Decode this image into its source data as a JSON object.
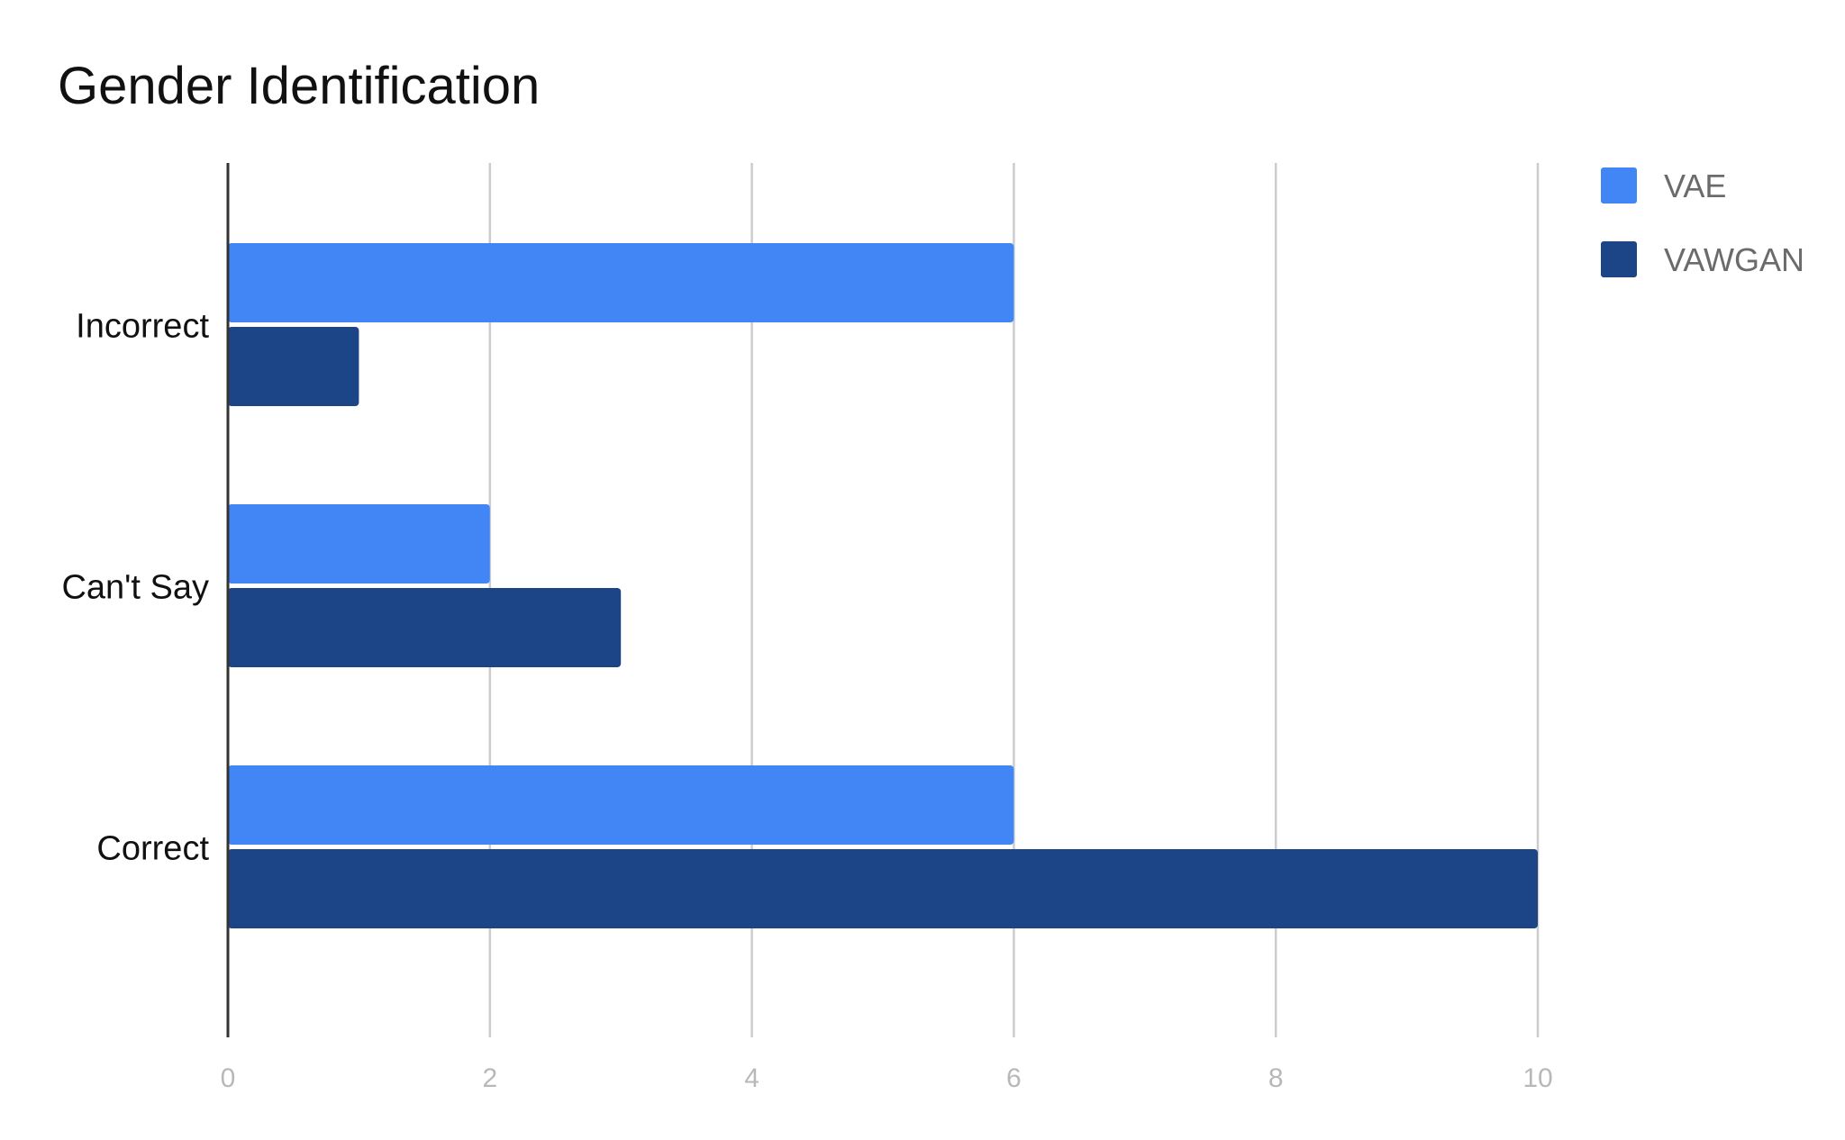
{
  "chart_data": {
    "type": "bar",
    "orientation": "horizontal",
    "title": "Gender Identification",
    "categories": [
      "Incorrect",
      "Can't Say",
      "Correct"
    ],
    "series": [
      {
        "name": "VAE",
        "color": "#4285f4",
        "values": [
          6,
          2,
          6
        ]
      },
      {
        "name": "VAWGAN",
        "color": "#1c4587",
        "values": [
          1,
          3,
          10
        ]
      }
    ],
    "xlim": [
      0,
      10
    ],
    "xticks": [
      0,
      2,
      4,
      6,
      8,
      10
    ],
    "grid": true,
    "legend": "top-right"
  }
}
